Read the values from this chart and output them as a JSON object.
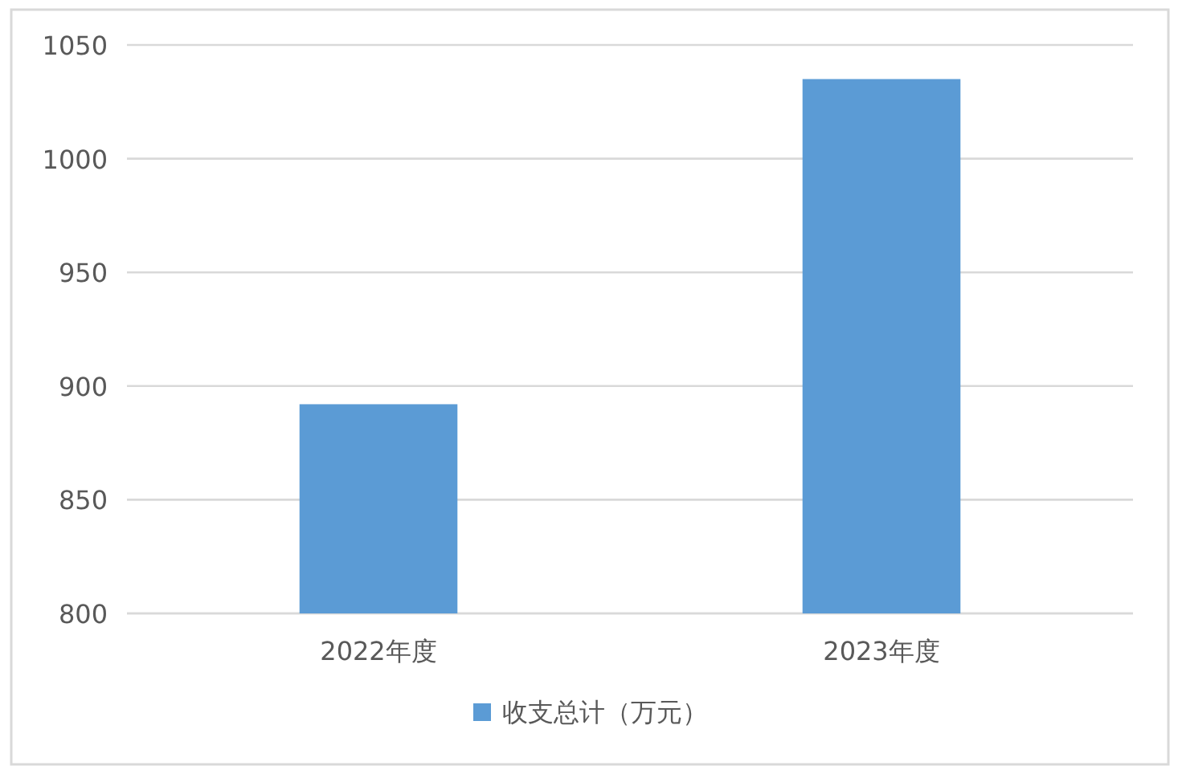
{
  "chart_data": {
    "type": "bar",
    "categories": [
      "2022年度",
      "2023年度"
    ],
    "series": [
      {
        "name": "收支总计（万元）",
        "color": "#5b9bd5",
        "values": [
          892,
          1035
        ]
      }
    ],
    "ylim": [
      800,
      1050
    ],
    "yticks": [
      800,
      850,
      900,
      950,
      1000,
      1050
    ],
    "grid": "y",
    "legend": "bottom"
  }
}
